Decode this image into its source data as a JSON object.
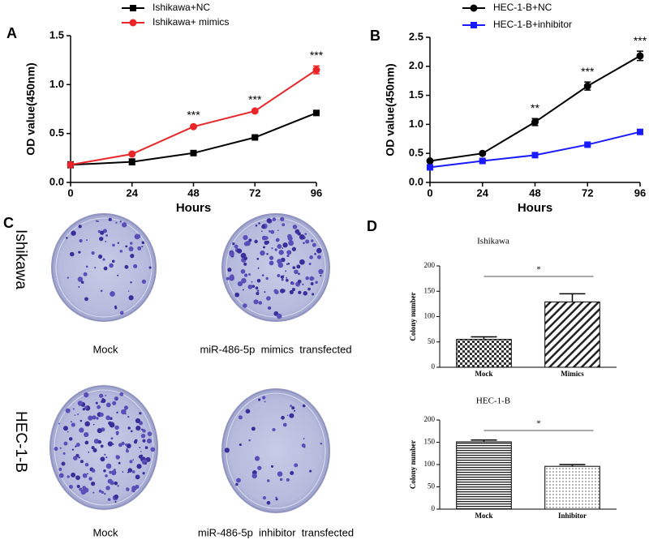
{
  "chart_data": [
    {
      "type": "line",
      "label": "A",
      "xlabel": "Hours",
      "ylabel": "OD value(450nm)",
      "x": [
        0,
        24,
        48,
        72,
        96
      ],
      "xlim": [
        0,
        96
      ],
      "xticks": [
        0,
        24,
        48,
        72,
        96
      ],
      "ylim": [
        0,
        1.5
      ],
      "yticks": [
        {
          "value": 0,
          "label": "0.0"
        },
        {
          "value": 0.5,
          "label": "0.5"
        },
        {
          "value": 1,
          "label": "1.0"
        },
        {
          "value": 1.5,
          "label": "1.5"
        }
      ],
      "series": [
        {
          "name": "Ishikawa+NC",
          "color": "#000000",
          "marker": "square",
          "values": [
            0.18,
            0.21,
            0.3,
            0.46,
            0.71
          ],
          "errors": [
            0.03,
            0.03,
            0.01,
            0.01,
            0.01
          ]
        },
        {
          "name": "Ishikawa+ mimics",
          "color": "#e8262a",
          "marker": "circle",
          "values": [
            0.18,
            0.29,
            0.57,
            0.73,
            1.15
          ],
          "errors": [
            0.02,
            0.01,
            0.01,
            0.01,
            0.04
          ]
        }
      ],
      "annotations": [
        {
          "text": "***",
          "x": 48
        },
        {
          "text": "***",
          "x": 72
        },
        {
          "text": "***",
          "x": 96
        }
      ]
    },
    {
      "type": "line",
      "label": "B",
      "xlabel": "Hours",
      "ylabel": "OD value(450nm)",
      "x": [
        0,
        24,
        48,
        72,
        96
      ],
      "xlim": [
        0,
        96
      ],
      "xticks": [
        0,
        24,
        48,
        72,
        96
      ],
      "ylim": [
        0,
        2.5
      ],
      "yticks": [
        {
          "value": 0,
          "label": "0.0"
        },
        {
          "value": 0.5,
          "label": "0.5"
        },
        {
          "value": 1,
          "label": "1.0"
        },
        {
          "value": 1.5,
          "label": "1.5"
        },
        {
          "value": 2,
          "label": "2.0"
        },
        {
          "value": 2.5,
          "label": "2.5"
        }
      ],
      "series": [
        {
          "name": "HEC-1-B+NC",
          "color": "#000000",
          "marker": "circle",
          "values": [
            0.37,
            0.5,
            1.04,
            1.66,
            2.18
          ],
          "errors": [
            0.02,
            0.02,
            0.06,
            0.07,
            0.08
          ]
        },
        {
          "name": "HEC-1-B+inhibitor",
          "color": "#1a1aff",
          "marker": "square",
          "values": [
            0.26,
            0.37,
            0.47,
            0.65,
            0.87
          ],
          "errors": [
            0.01,
            0.02,
            0.02,
            0.02,
            0.02
          ]
        }
      ],
      "annotations": [
        {
          "text": "**",
          "x": 48
        },
        {
          "text": "***",
          "x": 72
        },
        {
          "text": "***",
          "x": 96
        }
      ]
    },
    {
      "type": "bar",
      "label": "D",
      "title": "Ishikawa",
      "ylabel": "Colony number",
      "categories": [
        "Mock",
        "Mimics"
      ],
      "values": [
        55,
        129
      ],
      "errors": [
        5,
        16
      ],
      "patterns": [
        "checker",
        "diagonal"
      ],
      "ylim": [
        0,
        200
      ],
      "yticks": [
        0,
        50,
        100,
        150,
        200
      ],
      "significance": "*"
    },
    {
      "type": "bar",
      "title": "HEC-1-B",
      "ylabel": "Colony number",
      "categories": [
        "Mock",
        "Inhibitor"
      ],
      "values": [
        151,
        96
      ],
      "errors": [
        4,
        4
      ],
      "patterns": [
        "hlines",
        "dots"
      ],
      "ylim": [
        0,
        200
      ],
      "yticks": [
        0,
        50,
        100,
        150,
        200
      ],
      "significance": "*"
    }
  ],
  "colony_assay": {
    "label": "C",
    "rows": [
      "Ishikawa",
      "HEC-1-B"
    ],
    "captions": [
      [
        "Mock",
        "miR-486-5p  mimics  transfected"
      ],
      [
        "Mock",
        "miR-486-5p  inhibitor  transfected"
      ]
    ]
  }
}
